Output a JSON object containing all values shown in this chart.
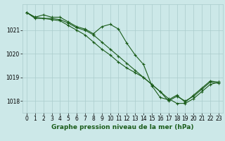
{
  "background_color": "#cce8e8",
  "grid_color": "#aacccc",
  "line_color": "#1a5c1a",
  "marker_color": "#1a5c1a",
  "title": "Graphe pression niveau de la mer (hPa)",
  "title_fontsize": 6.5,
  "tick_fontsize": 5.5,
  "xlim": [
    -0.5,
    23.5
  ],
  "ylim": [
    1017.5,
    1022.1
  ],
  "yticks": [
    1018,
    1019,
    1020,
    1021
  ],
  "xticks": [
    0,
    1,
    2,
    3,
    4,
    5,
    6,
    7,
    8,
    9,
    10,
    11,
    12,
    13,
    14,
    15,
    16,
    17,
    18,
    19,
    20,
    21,
    22,
    23
  ],
  "series1_x": [
    0,
    1,
    2,
    3,
    4,
    5,
    6,
    7,
    8,
    9,
    10,
    11,
    12,
    13,
    14,
    15,
    16,
    17,
    18,
    19,
    20,
    21,
    22,
    23
  ],
  "series1_y": [
    1021.75,
    1021.55,
    1021.65,
    1021.55,
    1021.55,
    1021.35,
    1021.15,
    1021.05,
    1020.85,
    1021.15,
    1021.25,
    1021.05,
    1020.45,
    1019.95,
    1019.55,
    1018.65,
    1018.15,
    1018.05,
    1018.25,
    1017.95,
    1018.25,
    1018.55,
    1018.85,
    1018.8
  ],
  "series2_x": [
    0,
    1,
    2,
    3,
    4,
    5,
    6,
    7,
    8,
    9,
    10,
    11,
    12,
    13,
    14,
    15,
    16,
    17,
    18,
    19,
    20,
    21,
    22,
    23
  ],
  "series2_y": [
    1021.75,
    1021.55,
    1021.5,
    1021.5,
    1021.45,
    1021.3,
    1021.1,
    1021.0,
    1020.8,
    1020.5,
    1020.2,
    1019.9,
    1019.6,
    1019.3,
    1019.0,
    1018.7,
    1018.4,
    1018.1,
    1017.9,
    1017.9,
    1018.1,
    1018.4,
    1018.7,
    1018.8
  ],
  "series3_x": [
    0,
    1,
    2,
    3,
    4,
    5,
    6,
    7,
    8,
    9,
    10,
    11,
    12,
    13,
    14,
    15,
    16,
    17,
    18,
    19,
    20,
    21,
    22,
    23
  ],
  "series3_y": [
    1021.75,
    1021.5,
    1021.5,
    1021.45,
    1021.4,
    1021.2,
    1021.0,
    1020.8,
    1020.5,
    1020.2,
    1019.95,
    1019.65,
    1019.4,
    1019.2,
    1019.0,
    1018.7,
    1018.4,
    1018.0,
    1018.2,
    1018.0,
    1018.2,
    1018.5,
    1018.8,
    1018.75
  ]
}
